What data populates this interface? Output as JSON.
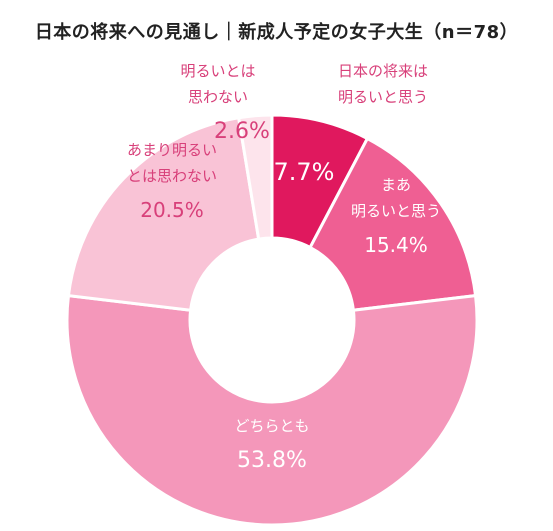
{
  "chart_data": {
    "type": "pie",
    "title": "日本の将来への見通し｜新成人予定の女子大生（n＝78）",
    "slices": [
      {
        "label_lines": [
          "日本の将来は",
          "明るいと思う"
        ],
        "value": 7.7,
        "value_text": "7.7%",
        "color": "#e0185e",
        "text_color": "#ffffff",
        "outside": true,
        "outside_color": "#d8407a"
      },
      {
        "label_lines": [
          "まあ",
          "明るいと思う"
        ],
        "value": 15.4,
        "value_text": "15.4%",
        "color": "#ef5f93",
        "text_color": "#ffffff",
        "outside": false
      },
      {
        "label_lines": [
          "どちらとも"
        ],
        "value": 53.8,
        "value_text": "53.8%",
        "color": "#f497ba",
        "text_color": "#ffffff",
        "outside": false
      },
      {
        "label_lines": [
          "あまり明るい",
          "とは思わない"
        ],
        "value": 20.5,
        "value_text": "20.5%",
        "color": "#f9c3d6",
        "text_color": "#d8407a",
        "outside": false
      },
      {
        "label_lines": [
          "明るいとは",
          "思わない"
        ],
        "value": 2.6,
        "value_text": "2.6%",
        "color": "#fde4ec",
        "text_color": "#d8407a",
        "outside": true,
        "outside_color": "#d8407a"
      }
    ]
  }
}
